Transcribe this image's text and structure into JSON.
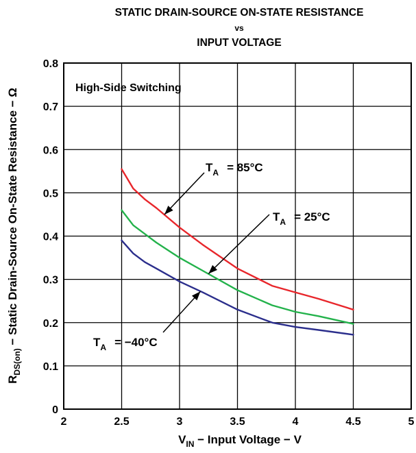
{
  "chart_data": {
    "type": "line",
    "title_line1": "STATIC DRAIN-SOURCE ON-STATE RESISTANCE",
    "title_line2": "vs",
    "title_line3": "INPUT VOLTAGE",
    "xlabel": {
      "v": "V",
      "sub": "IN",
      "rest": " − Input Voltage − V"
    },
    "ylabel": {
      "r": "R",
      "sub": "DS(on)",
      "rest": " − Static Drain-Source On-State Resistance − Ω"
    },
    "xlim": [
      2,
      5
    ],
    "ylim": [
      0,
      0.8
    ],
    "x_ticks": [
      2,
      2.5,
      3,
      3.5,
      4,
      4.5,
      5
    ],
    "x_tick_labels": [
      "2",
      "2.5",
      "3",
      "3.5",
      "4",
      "4.5",
      "5"
    ],
    "y_ticks": [
      0,
      0.1,
      0.2,
      0.3,
      0.4,
      0.5,
      0.6,
      0.7,
      0.8
    ],
    "y_tick_labels": [
      "0",
      "0.1",
      "0.2",
      "0.3",
      "0.4",
      "0.5",
      "0.6",
      "0.7",
      "0.8"
    ],
    "grid": true,
    "annotation": "High-Side Switching",
    "series": [
      {
        "label_prefix": "T",
        "label_sub": "A",
        "label_value": "= 85°C",
        "color": "#e8262b",
        "points": [
          [
            2.5,
            0.555
          ],
          [
            2.6,
            0.51
          ],
          [
            2.7,
            0.485
          ],
          [
            2.8,
            0.465
          ],
          [
            3.0,
            0.42
          ],
          [
            3.2,
            0.38
          ],
          [
            3.5,
            0.325
          ],
          [
            3.8,
            0.285
          ],
          [
            4.0,
            0.27
          ],
          [
            4.2,
            0.255
          ],
          [
            4.5,
            0.23
          ]
        ]
      },
      {
        "label_prefix": "T",
        "label_sub": "A",
        "label_value": "= 25°C",
        "color": "#23b24b",
        "points": [
          [
            2.5,
            0.46
          ],
          [
            2.6,
            0.425
          ],
          [
            2.7,
            0.405
          ],
          [
            2.8,
            0.385
          ],
          [
            3.0,
            0.35
          ],
          [
            3.2,
            0.32
          ],
          [
            3.5,
            0.275
          ],
          [
            3.8,
            0.24
          ],
          [
            4.0,
            0.225
          ],
          [
            4.2,
            0.215
          ],
          [
            4.5,
            0.197
          ]
        ]
      },
      {
        "label_prefix": "T",
        "label_sub": "A",
        "label_value": "= −40°C",
        "color": "#2b2e8c",
        "points": [
          [
            2.5,
            0.39
          ],
          [
            2.6,
            0.36
          ],
          [
            2.7,
            0.34
          ],
          [
            2.8,
            0.325
          ],
          [
            3.0,
            0.295
          ],
          [
            3.2,
            0.27
          ],
          [
            3.5,
            0.23
          ],
          [
            3.8,
            0.2
          ],
          [
            4.0,
            0.19
          ],
          [
            4.2,
            0.183
          ],
          [
            4.5,
            0.172
          ]
        ]
      }
    ]
  }
}
